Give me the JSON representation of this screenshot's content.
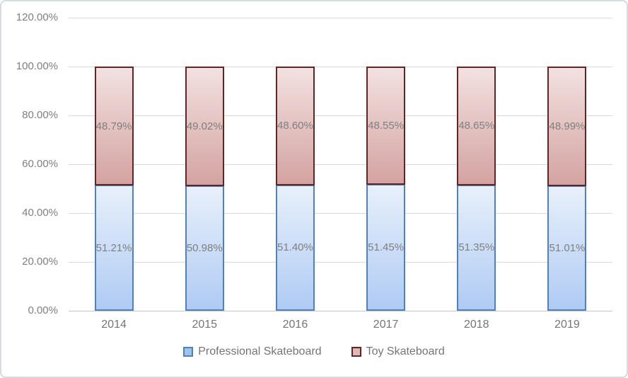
{
  "chart_data": {
    "type": "bar",
    "variant": "100-percent-stacked-column",
    "title": "",
    "xlabel": "",
    "ylabel": "",
    "grid": true,
    "legend_position": "bottom",
    "categories": [
      "2014",
      "2015",
      "2016",
      "2017",
      "2018",
      "2019"
    ],
    "series": [
      {
        "name": "Professional Skateboard",
        "values": [
          51.21,
          50.98,
          51.4,
          51.45,
          51.35,
          51.01
        ],
        "data_labels": [
          "51.21%",
          "50.98%",
          "51.40%",
          "51.45%",
          "51.35%",
          "51.01%"
        ],
        "border_color": "#4f81bd",
        "fill_top": "#e8f0fb",
        "fill_bottom": "#afcbf3"
      },
      {
        "name": "Toy Skateboard",
        "values": [
          48.79,
          49.02,
          48.6,
          48.55,
          48.65,
          48.99
        ],
        "data_labels": [
          "48.79%",
          "49.02%",
          "48.60%",
          "48.55%",
          "48.65%",
          "48.99%"
        ],
        "border_color": "#632523",
        "fill_top": "#f2e2e1",
        "fill_bottom": "#d3a3a1"
      }
    ],
    "y_axis": {
      "min": 0,
      "max": 120,
      "step": 20,
      "ticks": [
        {
          "label": "120.00%",
          "value": 120
        },
        {
          "label": "100.00%",
          "value": 100
        },
        {
          "label": "80.00%",
          "value": 80
        },
        {
          "label": "60.00%",
          "value": 60
        },
        {
          "label": "40.00%",
          "value": 40
        },
        {
          "label": "20.00%",
          "value": 20
        },
        {
          "label": "0.00%",
          "value": 0
        }
      ]
    },
    "colors": {
      "gridline": "#d9d9d9",
      "axis_line": "#c6c6c6",
      "tick_text": "#7f7f7f",
      "data_label_text": "#7f7f7f",
      "chart_border": "#d5dbe1",
      "background": "#ffffff"
    }
  },
  "legend": {
    "items": [
      {
        "label": "Professional Skateboard",
        "swatch": "blue-square-icon"
      },
      {
        "label": "Toy Skateboard",
        "swatch": "red-square-icon"
      }
    ]
  }
}
